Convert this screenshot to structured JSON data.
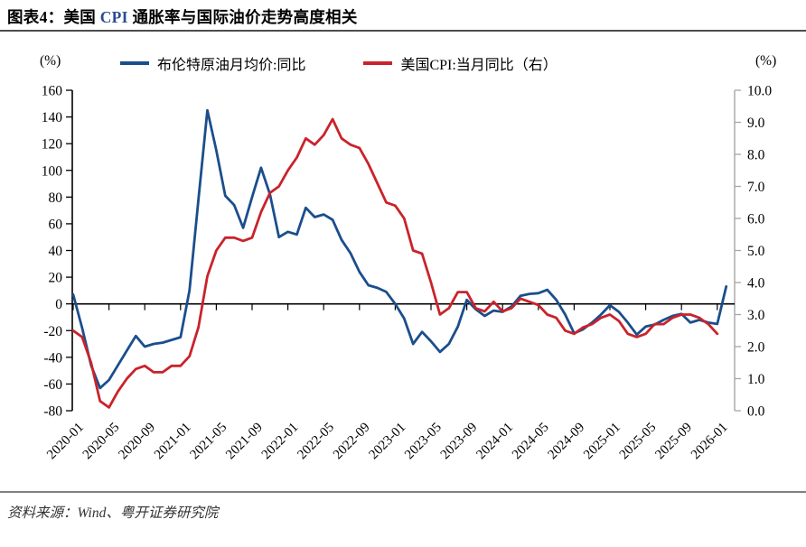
{
  "title": {
    "part1": "图表4：美国 ",
    "highlight": "CPI",
    "part2": " 通胀率与国际油价走势高度相关"
  },
  "footer": {
    "source_label": "资料来源：Wind、粤开证券研究院"
  },
  "colors": {
    "brent_line": "#1B4E8C",
    "cpi_line": "#C9232B",
    "title_highlight": "#2B4D8E",
    "right_axis_gray": "#A6A6A6"
  },
  "chart_data": {
    "type": "line",
    "unit_left": "(%)",
    "unit_right": "(%)",
    "legend_position": "top",
    "grid": false,
    "legend": [
      {
        "name": "布伦特原油月均价:同比",
        "color": "#1B4E8C",
        "axis": "left"
      },
      {
        "name": "美国CPI:当月同比（右）",
        "color": "#C9232B",
        "axis": "right"
      }
    ],
    "left_axis": {
      "min": -80,
      "max": 160,
      "step": 20,
      "ticks": [
        "160",
        "140",
        "120",
        "100",
        "80",
        "60",
        "40",
        "20",
        "0",
        "-20",
        "-40",
        "-60",
        "-80"
      ]
    },
    "right_axis": {
      "min": 0,
      "max": 10,
      "step": 1,
      "ticks": [
        "10.0",
        "9.0",
        "8.0",
        "7.0",
        "6.0",
        "5.0",
        "4.0",
        "3.0",
        "2.0",
        "1.0",
        "0.0"
      ]
    },
    "x_tick_labels": [
      "2020-01",
      "2020-05",
      "2020-09",
      "2021-01",
      "2021-05",
      "2021-09",
      "2022-01",
      "2022-05",
      "2022-09",
      "2023-01",
      "2023-05",
      "2023-09",
      "2024-01",
      "2024-05",
      "2024-09",
      "2025-01",
      "2025-05",
      "2025-09",
      "2026-01"
    ],
    "months": [
      "2020-01",
      "2020-02",
      "2020-03",
      "2020-04",
      "2020-05",
      "2020-06",
      "2020-07",
      "2020-08",
      "2020-09",
      "2020-10",
      "2020-11",
      "2020-12",
      "2021-01",
      "2021-02",
      "2021-03",
      "2021-04",
      "2021-05",
      "2021-06",
      "2021-07",
      "2021-08",
      "2021-09",
      "2021-10",
      "2021-11",
      "2021-12",
      "2022-01",
      "2022-02",
      "2022-03",
      "2022-04",
      "2022-05",
      "2022-06",
      "2022-07",
      "2022-08",
      "2022-09",
      "2022-10",
      "2022-11",
      "2022-12",
      "2023-01",
      "2023-02",
      "2023-03",
      "2023-04",
      "2023-05",
      "2023-06",
      "2023-07",
      "2023-08",
      "2023-09",
      "2023-10",
      "2023-11",
      "2023-12",
      "2024-01",
      "2024-02",
      "2024-03",
      "2024-04",
      "2024-05",
      "2024-06",
      "2024-07",
      "2024-08",
      "2024-09",
      "2024-10",
      "2024-11",
      "2024-12",
      "2025-01",
      "2025-02",
      "2025-03",
      "2025-04",
      "2025-05",
      "2025-06",
      "2025-07",
      "2025-08",
      "2025-09",
      "2025-10",
      "2025-11",
      "2025-12",
      "2026-01",
      "2026-02"
    ],
    "series": [
      {
        "name": "布伦特原油月均价:同比",
        "axis": "left",
        "color": "#1B4E8C",
        "values": [
          7,
          -18,
          -46,
          -63,
          -57,
          -46,
          -35,
          -24,
          -32,
          -30,
          -29,
          -27,
          -25,
          10,
          78,
          145,
          115,
          81,
          74,
          57,
          80,
          102,
          82,
          50,
          54,
          52,
          72,
          65,
          67,
          63,
          48,
          38,
          24,
          14,
          12,
          9,
          0,
          -11,
          -30,
          -21,
          -28,
          -36,
          -30,
          -17,
          3,
          -4,
          -9,
          -5,
          -6,
          -2,
          6,
          7.5,
          8,
          10.5,
          3,
          -8,
          -22,
          -19,
          -14,
          -8,
          -1,
          -6,
          -14,
          -23,
          -17,
          -15.5,
          -12,
          -9,
          -7.5,
          -14,
          -12,
          -14,
          -15,
          13
        ]
      },
      {
        "name": "美国CPI:当月同比（右）",
        "axis": "right",
        "color": "#C9232B",
        "values": [
          2.5,
          2.3,
          1.5,
          0.3,
          0.1,
          0.6,
          1.0,
          1.3,
          1.4,
          1.2,
          1.2,
          1.4,
          1.4,
          1.7,
          2.6,
          4.2,
          5.0,
          5.4,
          5.4,
          5.3,
          5.4,
          6.2,
          6.8,
          7.0,
          7.5,
          7.9,
          8.5,
          8.3,
          8.6,
          9.1,
          8.5,
          8.3,
          8.2,
          7.7,
          7.1,
          6.5,
          6.4,
          6.0,
          5.0,
          4.9,
          4.0,
          3.0,
          3.2,
          3.7,
          3.7,
          3.2,
          3.1,
          3.4,
          3.1,
          3.2,
          3.5,
          3.4,
          3.3,
          3.0,
          2.9,
          2.5,
          2.4,
          2.6,
          2.7,
          2.9,
          3.0,
          2.8,
          2.4,
          2.3,
          2.4,
          2.7,
          2.7,
          2.9,
          3.0,
          3.0,
          2.9,
          2.7,
          2.4
        ]
      }
    ]
  }
}
